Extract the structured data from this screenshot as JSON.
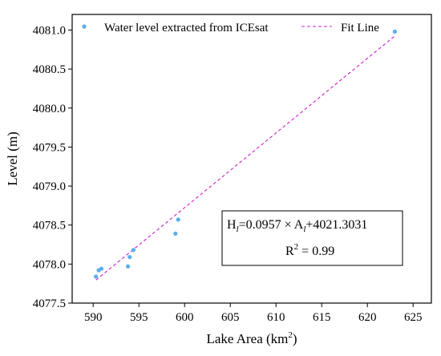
{
  "chart_data": {
    "type": "scatter",
    "xlabel": "Lake Area (km",
    "xlabel_sup": "2",
    "xlabel_end": ")",
    "ylabel": "Level (m)",
    "xlim": [
      587.7,
      627.0
    ],
    "ylim": [
      4077.5,
      4081.2
    ],
    "xticks": [
      590,
      595,
      600,
      605,
      610,
      615,
      620,
      625
    ],
    "yticks": [
      4077.5,
      4078.0,
      4078.5,
      4079.0,
      4079.5,
      4080.0,
      4080.5,
      4081.0
    ],
    "ytick_labels": [
      "4077.5",
      "4078.0",
      "4078.5",
      "4079.0",
      "4079.5",
      "4080.0",
      "4080.5",
      "4081.0"
    ],
    "series": [
      {
        "name": "Water level extracted from ICEsat",
        "color": "#5aaeea",
        "points": [
          {
            "x": 590.3,
            "y": 4077.84
          },
          {
            "x": 590.6,
            "y": 4077.92
          },
          {
            "x": 590.9,
            "y": 4077.94
          },
          {
            "x": 593.8,
            "y": 4077.97
          },
          {
            "x": 594.0,
            "y": 4078.09
          },
          {
            "x": 594.4,
            "y": 4078.18
          },
          {
            "x": 599.0,
            "y": 4078.39
          },
          {
            "x": 599.3,
            "y": 4078.57
          },
          {
            "x": 623.0,
            "y": 4080.98
          }
        ]
      }
    ],
    "fit_line": {
      "name": "Fit Line",
      "color": "#cc22cc",
      "slope": 0.0957,
      "intercept": 4021.3031,
      "x_range": [
        590.3,
        623.0
      ]
    },
    "annotation": {
      "equation_parts": [
        "H",
        "l",
        "=0.0957 × A",
        "l",
        "+4021.3031"
      ],
      "r2_prefix": "R",
      "r2_sup": "2",
      "r2_value": " = 0.99"
    },
    "legend_position": "top"
  }
}
